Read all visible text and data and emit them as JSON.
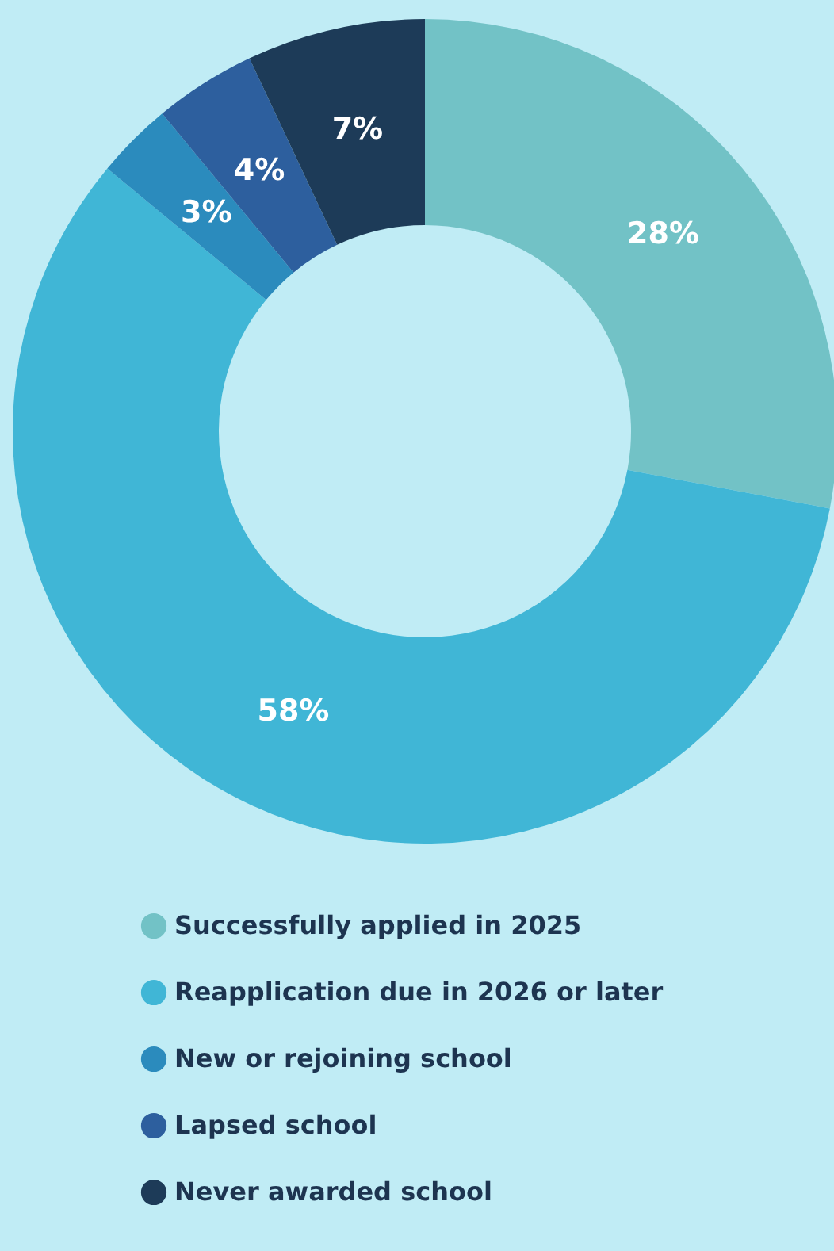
{
  "chart_data": {
    "type": "donut",
    "categories": [
      "Successfully applied in 2025",
      "Reapplication due in 2026 or later",
      "New or rejoining school",
      "Lapsed school",
      "Never awarded school"
    ],
    "values": [
      28,
      58,
      3,
      4,
      7
    ],
    "colors": [
      "#72c2c6",
      "#40b6d6",
      "#2b8bbd",
      "#2d5f9e",
      "#1d3b58"
    ],
    "value_labels": [
      "28%",
      "58%",
      "3%",
      "4%",
      "7%"
    ],
    "legend": "bottom"
  }
}
